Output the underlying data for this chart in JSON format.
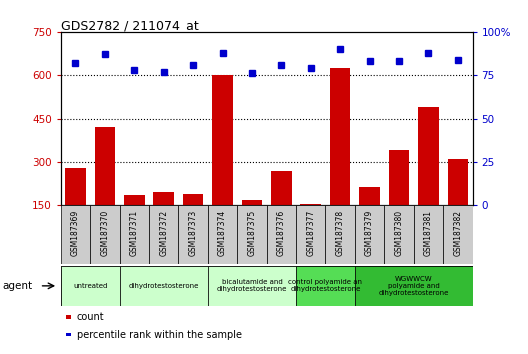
{
  "title": "GDS2782 / 211074_at",
  "samples": [
    "GSM187369",
    "GSM187370",
    "GSM187371",
    "GSM187372",
    "GSM187373",
    "GSM187374",
    "GSM187375",
    "GSM187376",
    "GSM187377",
    "GSM187378",
    "GSM187379",
    "GSM187380",
    "GSM187381",
    "GSM187382"
  ],
  "counts": [
    280,
    420,
    185,
    195,
    190,
    600,
    170,
    270,
    155,
    625,
    215,
    340,
    490,
    310
  ],
  "percentiles": [
    82,
    87,
    78,
    77,
    81,
    88,
    76,
    81,
    79,
    90,
    83,
    83,
    88,
    84
  ],
  "left_ylim": [
    150,
    750
  ],
  "right_ylim": [
    0,
    100
  ],
  "left_yticks": [
    150,
    300,
    450,
    600,
    750
  ],
  "right_yticks": [
    0,
    25,
    50,
    75,
    100
  ],
  "right_yticklabels": [
    "0",
    "25",
    "50",
    "75",
    "100%"
  ],
  "bar_color": "#CC0000",
  "dot_color": "#0000CC",
  "grid_color": "#000000",
  "agent_groups": [
    {
      "label": "untreated",
      "indices": [
        0,
        1
      ],
      "color": "#ccffcc"
    },
    {
      "label": "dihydrotestosterone",
      "indices": [
        2,
        3,
        4
      ],
      "color": "#ccffcc"
    },
    {
      "label": "bicalutamide and\ndihydrotestosterone",
      "indices": [
        5,
        6,
        7
      ],
      "color": "#ccffcc"
    },
    {
      "label": "control polyamide an\ndihydrotestosterone",
      "indices": [
        8,
        9
      ],
      "color": "#55dd55"
    },
    {
      "label": "WGWWCW\npolyamide and\ndihydrotestosterone",
      "indices": [
        10,
        11,
        12,
        13
      ],
      "color": "#33bb33"
    }
  ],
  "tick_cell_color": "#cccccc",
  "legend_count": "count",
  "legend_percentile": "percentile rank within the sample",
  "bg_color": "#ffffff"
}
